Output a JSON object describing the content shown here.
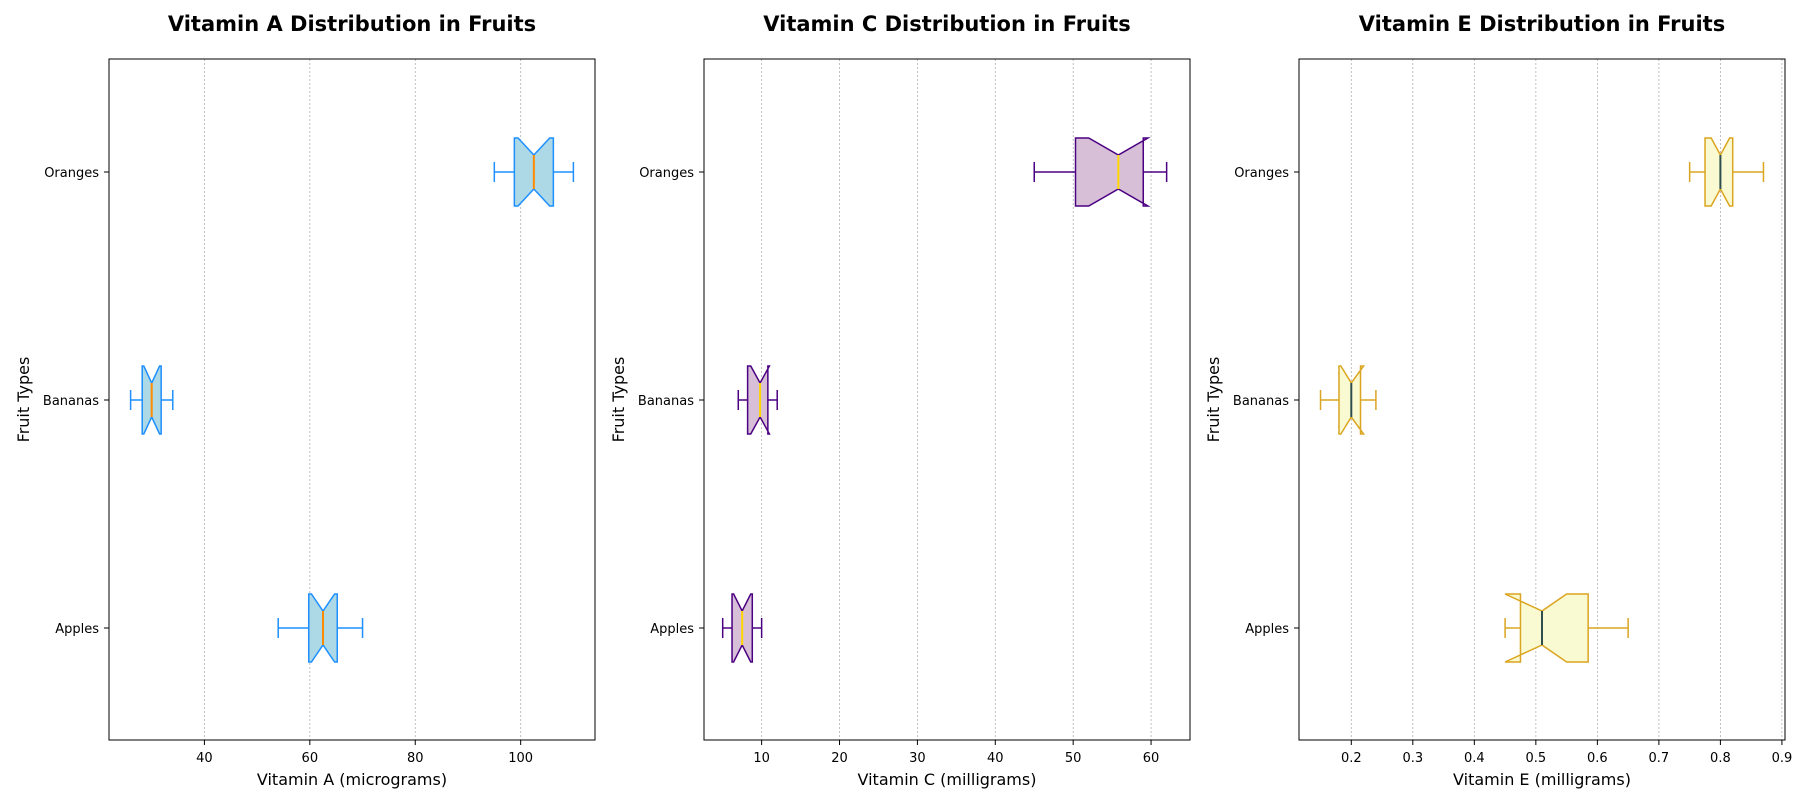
{
  "chart_data": [
    {
      "type": "boxplot",
      "orientation": "horizontal",
      "notched": true,
      "title": "Vitamin A Distribution in Fruits",
      "xlabel": "Vitamin A (micrograms)",
      "ylabel": "Fruit Types",
      "xlim": [
        21.9,
        114.1
      ],
      "xticks": [
        40,
        60,
        80,
        100
      ],
      "x_grid": true,
      "colors": {
        "face": "#ADD8E6",
        "edge": "#1E90FF",
        "median": "#FF8C00",
        "whisker": "#1E90FF"
      },
      "categories": [
        "Apples",
        "Bananas",
        "Oranges"
      ],
      "boxes": [
        {
          "label": "Apples",
          "whislo": 54,
          "q1": 59.8,
          "med": 62.5,
          "q3": 65.2,
          "whishi": 70,
          "notch_lo": 60.3,
          "notch_hi": 64.7
        },
        {
          "label": "Bananas",
          "whislo": 26,
          "q1": 28.2,
          "med": 30,
          "q3": 31.8,
          "whishi": 34,
          "notch_lo": 28.5,
          "notch_hi": 31.5
        },
        {
          "label": "Oranges",
          "whislo": 95,
          "q1": 98.8,
          "med": 102.5,
          "q3": 106.2,
          "whishi": 110,
          "notch_lo": 99.5,
          "notch_hi": 105.5
        }
      ]
    },
    {
      "type": "boxplot",
      "orientation": "horizontal",
      "notched": true,
      "title": "Vitamin C Distribution in Fruits",
      "xlabel": "Vitamin C (milligrams)",
      "ylabel": "Fruit Types",
      "xlim": [
        2.6,
        65.0
      ],
      "xticks": [
        10,
        20,
        30,
        40,
        50,
        60
      ],
      "x_grid": true,
      "colors": {
        "face": "#D8BFD8",
        "edge": "#4B0082",
        "median": "#FFD700",
        "whisker": "#4B0082"
      },
      "categories": [
        "Apples",
        "Bananas",
        "Oranges"
      ],
      "boxes": [
        {
          "label": "Apples",
          "whislo": 5,
          "q1": 6.2,
          "med": 7.5,
          "q3": 8.8,
          "whishi": 10,
          "notch_lo": 6.4,
          "notch_hi": 8.6
        },
        {
          "label": "Bananas",
          "whislo": 7,
          "q1": 8.2,
          "med": 9.8,
          "q3": 10.8,
          "whishi": 12,
          "notch_lo": 8.6,
          "notch_hi": 11.0
        },
        {
          "label": "Oranges",
          "whislo": 45,
          "q1": 50.3,
          "med": 55.8,
          "q3": 59.0,
          "whishi": 62,
          "notch_lo": 52.0,
          "notch_hi": 59.6
        }
      ]
    },
    {
      "type": "boxplot",
      "orientation": "horizontal",
      "notched": true,
      "title": "Vitamin E Distribution in Fruits",
      "xlabel": "Vitamin E (milligrams)",
      "ylabel": "Fruit Types",
      "xlim": [
        0.115,
        0.905
      ],
      "xticks": [
        0.2,
        0.3,
        0.4,
        0.5,
        0.6,
        0.7,
        0.8,
        0.9
      ],
      "x_grid": true,
      "colors": {
        "face": "#FAFAD2",
        "edge": "#DAA520",
        "median": "#2F4F4F",
        "whisker": "#DAA520"
      },
      "categories": [
        "Apples",
        "Bananas",
        "Oranges"
      ],
      "boxes": [
        {
          "label": "Apples",
          "whislo": 0.45,
          "q1": 0.475,
          "med": 0.51,
          "q3": 0.585,
          "whishi": 0.65,
          "notch_lo": 0.45,
          "notch_hi": 0.55
        },
        {
          "label": "Bananas",
          "whislo": 0.15,
          "q1": 0.18,
          "med": 0.2,
          "q3": 0.215,
          "whishi": 0.24,
          "notch_lo": 0.183,
          "notch_hi": 0.22
        },
        {
          "label": "Oranges",
          "whislo": 0.75,
          "q1": 0.775,
          "med": 0.8,
          "q3": 0.82,
          "whishi": 0.87,
          "notch_lo": 0.785,
          "notch_hi": 0.815
        }
      ]
    }
  ]
}
